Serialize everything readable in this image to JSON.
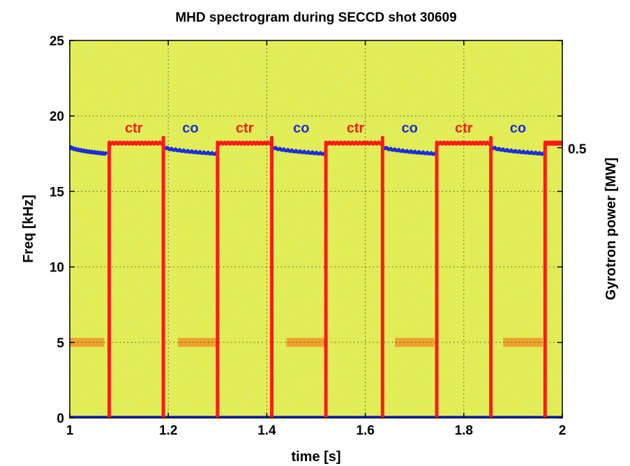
{
  "chart_data": {
    "type": "spectrogram",
    "title": "MHD spectrogram during SECCD shot 30609",
    "xlabel": "time [s]",
    "ylabel": "Freq [kHz]",
    "y2label": "Gyrotron power [MW]",
    "xlim": [
      1,
      2
    ],
    "ylim": [
      0,
      25
    ],
    "xticks": [
      1,
      1.2,
      1.4,
      1.6,
      1.8,
      2
    ],
    "xtick_labels": [
      "1",
      "1.2",
      "1.4",
      "1.6",
      "1.8",
      "2"
    ],
    "yticks": [
      0,
      5,
      10,
      15,
      20,
      25
    ],
    "ytick_labels": [
      "0",
      "5",
      "10",
      "15",
      "20",
      "25"
    ],
    "y2tick_label": "0.5",
    "y2tick_at_freq": 17.9,
    "grid": true,
    "background_colormap": "jet (mostly yellow-green)",
    "series": [
      {
        "name": "ctr",
        "color": "#ff1a1a",
        "on_value_freq_units": 18.2,
        "on_intervals": [
          [
            1.08,
            1.19
          ],
          [
            1.3,
            1.41
          ],
          [
            1.52,
            1.635
          ],
          [
            1.745,
            1.855
          ],
          [
            1.965,
            2.0
          ]
        ]
      },
      {
        "name": "co",
        "color": "#1a2fd8",
        "on_intervals": [
          [
            1.0,
            1.075
          ],
          [
            1.19,
            1.3
          ],
          [
            1.41,
            1.52
          ],
          [
            1.635,
            1.745
          ],
          [
            1.855,
            1.965
          ]
        ],
        "start_freq": 18.0,
        "end_freq": 17.5
      }
    ],
    "mode_trace": {
      "freq_khz": 5,
      "segments": [
        [
          1.0,
          1.07
        ],
        [
          1.22,
          1.3
        ],
        [
          1.44,
          1.52
        ],
        [
          1.66,
          1.74
        ],
        [
          1.88,
          1.96
        ]
      ]
    },
    "annotations": [
      {
        "text": "ctr",
        "t": 1.13,
        "freq": 18.9,
        "color": "#ff1a1a"
      },
      {
        "text": "co",
        "t": 1.245,
        "freq": 18.9,
        "color": "#1a2fd8"
      },
      {
        "text": "ctr",
        "t": 1.355,
        "freq": 18.9,
        "color": "#ff1a1a"
      },
      {
        "text": "co",
        "t": 1.47,
        "freq": 18.9,
        "color": "#1a2fd8"
      },
      {
        "text": "ctr",
        "t": 1.58,
        "freq": 18.9,
        "color": "#ff1a1a"
      },
      {
        "text": "co",
        "t": 1.69,
        "freq": 18.9,
        "color": "#1a2fd8"
      },
      {
        "text": "ctr",
        "t": 1.8,
        "freq": 18.9,
        "color": "#ff1a1a"
      },
      {
        "text": "co",
        "t": 1.91,
        "freq": 18.9,
        "color": "#1a2fd8"
      }
    ]
  }
}
